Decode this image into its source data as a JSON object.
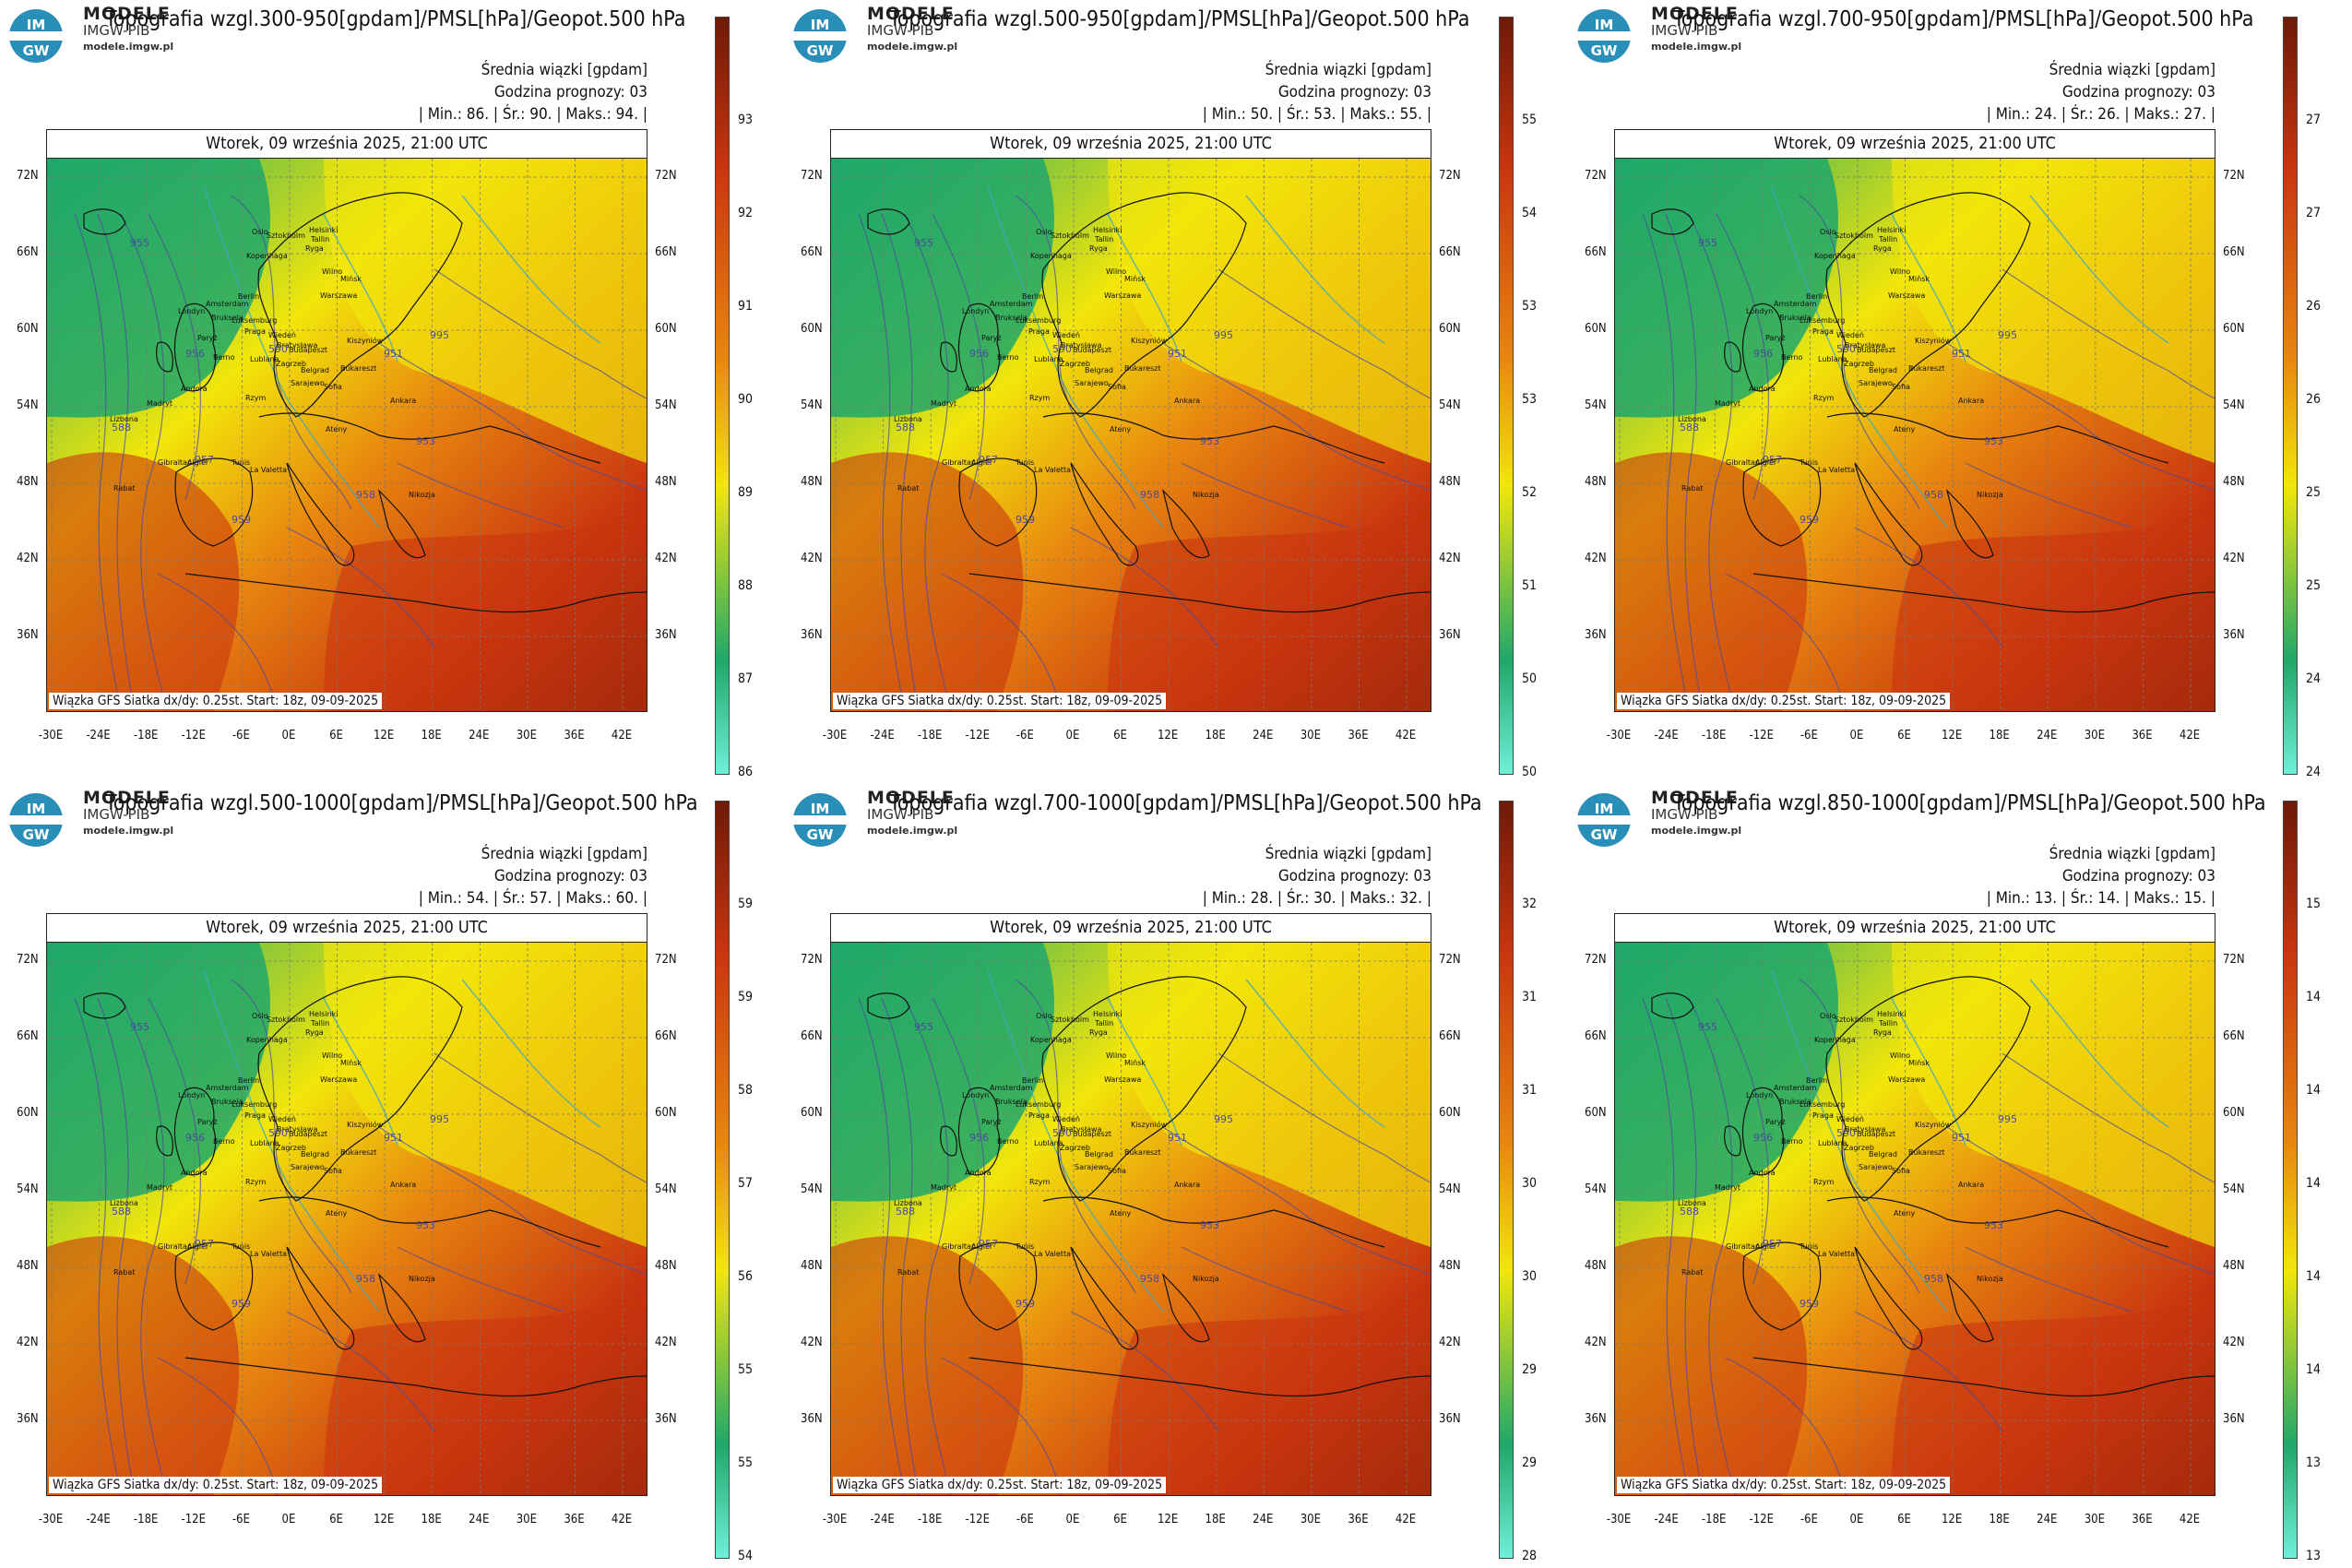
{
  "brand": {
    "name": "MODELE",
    "sub": "IMGW-PIB",
    "url": "modele.imgw.pl",
    "logo_text": "IM GW"
  },
  "common": {
    "header_label": "Średnia wiązki [gpdam]",
    "forecast_hour_label": "Godzina prognozy: 03",
    "date_label": "Wtorek, 09 września 2025, 21:00 UTC",
    "footer": "Wiązka GFS Siatka dx/dy: 0.25st. Start: 18z, 09-09-2025",
    "lat_labels": [
      "72N",
      "66N",
      "60N",
      "54N",
      "48N",
      "42N",
      "36N"
    ],
    "lon_labels": [
      "-30E",
      "-24E",
      "-18E",
      "-12E",
      "-6E",
      "0E",
      "6E",
      "12E",
      "18E",
      "24E",
      "30E",
      "36E",
      "42E"
    ],
    "min_label": "Min.:",
    "avg_label": "Śr.:",
    "max_label": "Maks.:"
  },
  "colors": {
    "green": "#1fa86a",
    "yellow": "#f2e60a",
    "orange": "#e8860f",
    "red": "#c9350f",
    "dark_red": "#6e1a08",
    "cyan": "#6ef0d8",
    "isobar": "#4a4aa0",
    "geopot": "#3fa7c0"
  },
  "panels": [
    {
      "title": "Topografia wzgl.300-950[gpdam]/PMSL[hPa]/Geopot.500 hPa",
      "min": "86.",
      "avg": "90.",
      "max": "94.",
      "colorbar_ticks": [
        "93",
        "92",
        "91",
        "90",
        "89",
        "88",
        "87",
        "86"
      ]
    },
    {
      "title": "Topografia wzgl.500-950[gpdam]/PMSL[hPa]/Geopot.500 hPa",
      "min": "50.",
      "avg": "53.",
      "max": "55.",
      "colorbar_ticks": [
        "55",
        "54",
        "53",
        "53",
        "52",
        "51",
        "50",
        "50"
      ]
    },
    {
      "title": "Topografia wzgl.700-950[gpdam]/PMSL[hPa]/Geopot.500 hPa",
      "min": "24.",
      "avg": "26.",
      "max": "27.",
      "colorbar_ticks": [
        "27",
        "27",
        "26",
        "26",
        "25",
        "25",
        "24",
        "24"
      ]
    },
    {
      "title": "Topografia wzgl.500-1000[gpdam]/PMSL[hPa]/Geopot.500 hPa",
      "min": "54.",
      "avg": "57.",
      "max": "60.",
      "colorbar_ticks": [
        "59",
        "59",
        "58",
        "57",
        "56",
        "55",
        "55",
        "54"
      ]
    },
    {
      "title": "Topografia wzgl.700-1000[gpdam]/PMSL[hPa]/Geopot.500 hPa",
      "min": "28.",
      "avg": "30.",
      "max": "32.",
      "colorbar_ticks": [
        "32",
        "31",
        "31",
        "30",
        "30",
        "29",
        "29",
        "28"
      ]
    },
    {
      "title": "Topografia wzgl.850-1000[gpdam]/PMSL[hPa]/Geopot.500 hPa",
      "min": "13.",
      "avg": "14.",
      "max": "15.",
      "colorbar_ticks": [
        "15",
        "14",
        "14",
        "14",
        "14",
        "14",
        "13",
        "13"
      ]
    }
  ],
  "cities": [
    "Oslo",
    "Sztokholm",
    "Helsinki",
    "Tallin",
    "Ryga",
    "Kopenhaga",
    "Wilno",
    "Mińsk",
    "Amsterdam",
    "Berlin",
    "Warszawa",
    "Londyn",
    "Bruksela",
    "Luksemburg",
    "Praga",
    "Paryż",
    "Wiedeń",
    "Bratysława",
    "Budapeszt",
    "Kiszyniów",
    "Berno",
    "Lublana",
    "Zagrzeb",
    "Belgrad",
    "Bukareszt",
    "Sarajewo",
    "Sofia",
    "Andora",
    "Rzym",
    "Madryt",
    "Lizbona",
    "Ateny",
    "Ankara",
    "Gibraltar",
    "Algier",
    "Tunis",
    "La Valetta",
    "Nikozja",
    "Rabat"
  ],
  "isobar_values": [
    "955",
    "956",
    "957",
    "958",
    "959",
    "590",
    "951",
    "953",
    "995",
    "588"
  ]
}
